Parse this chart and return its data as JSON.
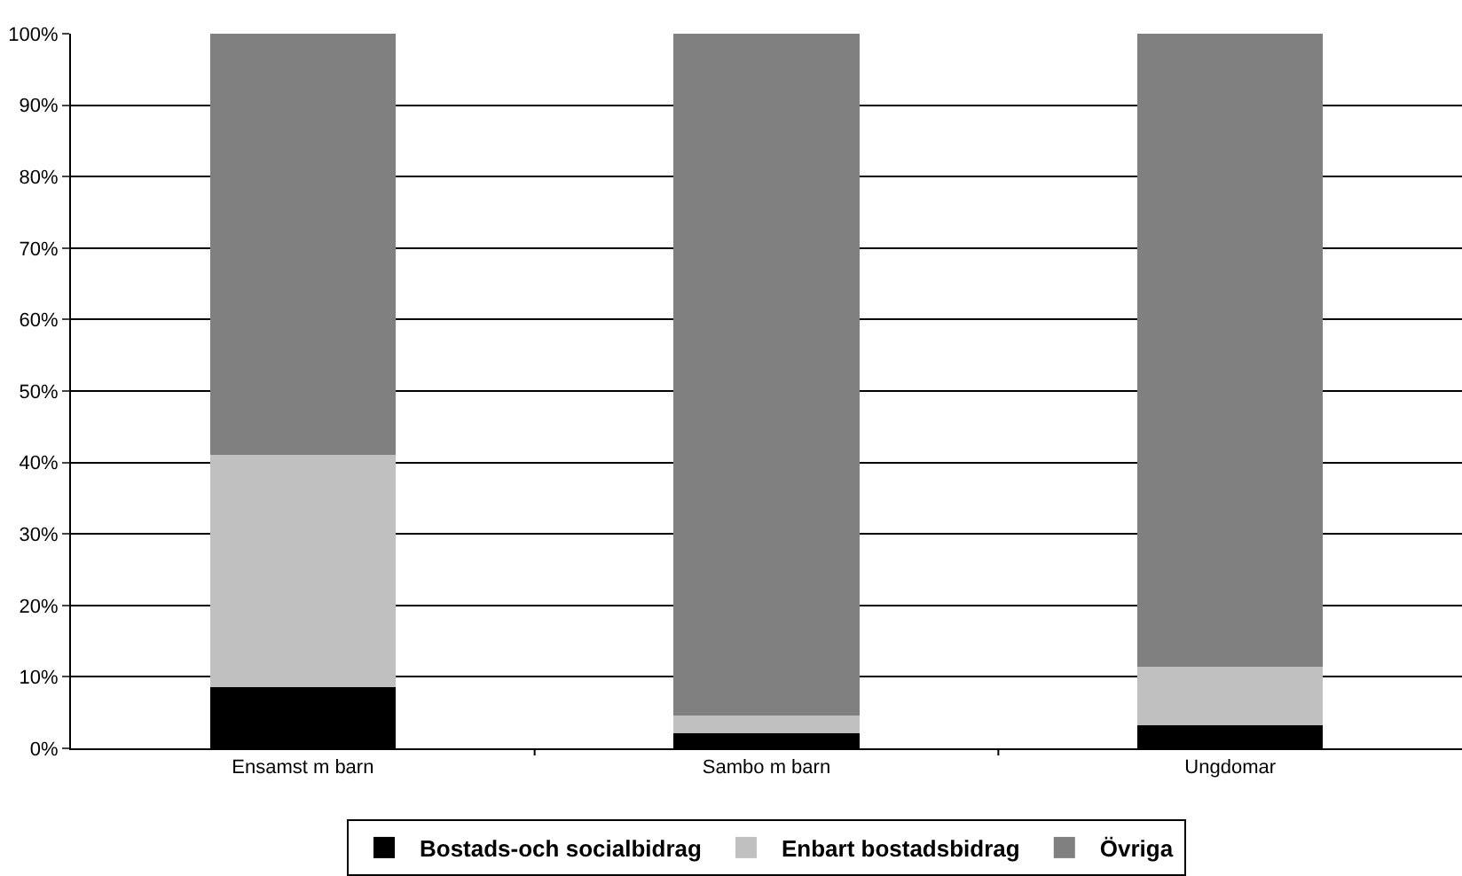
{
  "chart_data": {
    "type": "bar",
    "stacked": true,
    "categories": [
      "Ensamst m barn",
      "Sambo m barn",
      "Ungdomar"
    ],
    "series": [
      {
        "name": "Bostads-och socialbidrag",
        "color": "#000000",
        "values": [
          8.6,
          2.1,
          3.2
        ]
      },
      {
        "name": "Enbart bostadsbidrag",
        "color": "#c0c0c0",
        "values": [
          32.5,
          2.5,
          8.2
        ]
      },
      {
        "name": "Övriga",
        "color": "#808080",
        "values": [
          58.9,
          95.4,
          88.6
        ]
      }
    ],
    "ylim": [
      0,
      100
    ],
    "yticks": [
      {
        "value": 0,
        "label": "0%"
      },
      {
        "value": 10,
        "label": "10%"
      },
      {
        "value": 20,
        "label": "20%"
      },
      {
        "value": 30,
        "label": "30%"
      },
      {
        "value": 40,
        "label": "40%"
      },
      {
        "value": 50,
        "label": "50%"
      },
      {
        "value": 60,
        "label": "60%"
      },
      {
        "value": 70,
        "label": "70%"
      },
      {
        "value": 80,
        "label": "80%"
      },
      {
        "value": 90,
        "label": "90%"
      },
      {
        "value": 100,
        "label": "100%"
      }
    ],
    "grid": "y",
    "legend": "bottom"
  }
}
